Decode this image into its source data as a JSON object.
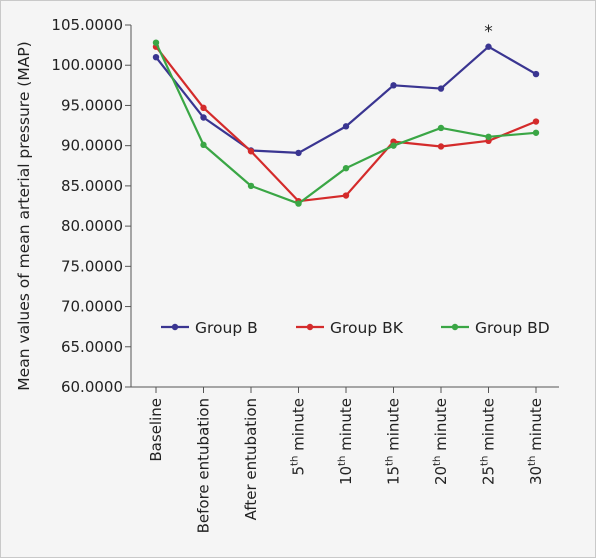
{
  "chart_data": {
    "type": "line",
    "title": "",
    "ylabel": "Mean values of mean arterial pressure (MAP)",
    "xlabel": "",
    "ylim": [
      60,
      105
    ],
    "yticks": [
      60,
      65,
      70,
      75,
      80,
      85,
      90,
      95,
      100,
      105
    ],
    "ytick_labels": [
      "60.0000",
      "65.0000",
      "70.0000",
      "75.0000",
      "80.0000",
      "85.0000",
      "90.0000",
      "95.0000",
      "100.0000",
      "105.0000"
    ],
    "categories": [
      {
        "label": "Baseline",
        "base": "Baseline",
        "sup": ""
      },
      {
        "label": "Before entubation",
        "base": "Before entubation",
        "sup": ""
      },
      {
        "label": "After entubation",
        "base": "After entubation",
        "sup": ""
      },
      {
        "label": "5th minute",
        "base": "5",
        "sup": "th",
        "rest": " minute"
      },
      {
        "label": "10th minute",
        "base": "10",
        "sup": "th",
        "rest": " minute"
      },
      {
        "label": "15th minute",
        "base": "15",
        "sup": "th",
        "rest": " minute"
      },
      {
        "label": "20th minute",
        "base": "20",
        "sup": "th",
        "rest": " minute"
      },
      {
        "label": "25th minute",
        "base": "25",
        "sup": "th",
        "rest": " minute"
      },
      {
        "label": "30th minute",
        "base": "30",
        "sup": "th",
        "rest": " minute"
      }
    ],
    "series": [
      {
        "name": "Group B",
        "color": "#3a3591",
        "values": [
          101.0,
          93.5,
          89.4,
          89.1,
          92.4,
          97.5,
          97.1,
          102.3,
          98.9
        ]
      },
      {
        "name": "Group BK",
        "color": "#d42b2b",
        "values": [
          102.3,
          94.7,
          89.3,
          83.1,
          83.8,
          90.5,
          89.9,
          90.6,
          93.0
        ]
      },
      {
        "name": "Group BD",
        "color": "#3aa645",
        "values": [
          102.8,
          90.1,
          85.0,
          82.8,
          87.2,
          90.0,
          92.2,
          91.1,
          91.6
        ]
      }
    ],
    "annotations": [
      {
        "text": "*",
        "category_index": 7,
        "y": 104.5
      }
    ],
    "legend_position": "inside-bottom",
    "grid": false
  }
}
